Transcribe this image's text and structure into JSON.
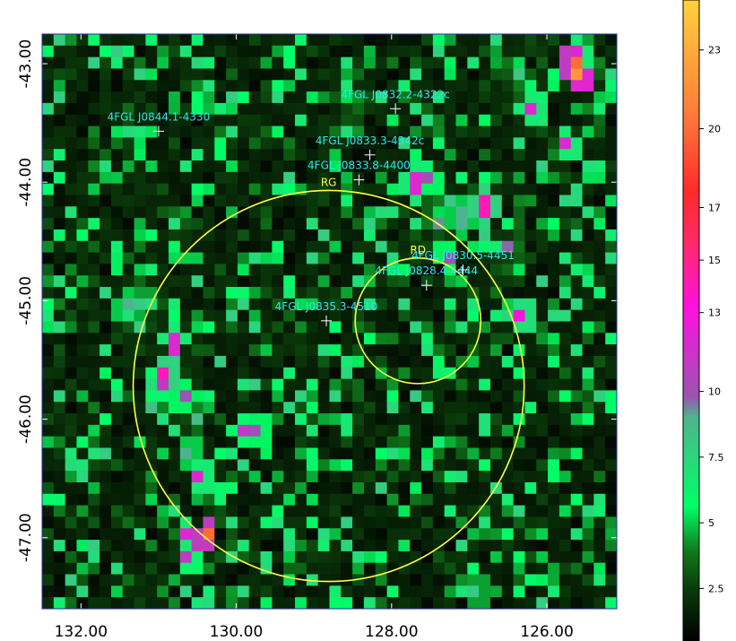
{
  "chart_data": {
    "type": "heatmap",
    "title": "",
    "xlabel": "",
    "ylabel": "",
    "x_axis": {
      "reversed": true,
      "range": [
        132.5,
        125.1
      ],
      "ticks": [
        {
          "value": 132.0,
          "label": "132.00"
        },
        {
          "value": 130.0,
          "label": "130.00"
        },
        {
          "value": 128.0,
          "label": "128.00"
        },
        {
          "value": 126.0,
          "label": "126.00"
        }
      ]
    },
    "y_axis": {
      "range": [
        -47.6,
        -42.75
      ],
      "ticks": [
        {
          "value": -43.0,
          "label": "-43.00"
        },
        {
          "value": -44.0,
          "label": "-44.00"
        },
        {
          "value": -45.0,
          "label": "-45.00"
        },
        {
          "value": -46.0,
          "label": "-46.00"
        },
        {
          "value": -47.0,
          "label": "-47.00"
        }
      ]
    },
    "colorbar": {
      "range": [
        0.5,
        24.9
      ],
      "ticks": [
        {
          "value": 2.5,
          "label": "2.5"
        },
        {
          "value": 5,
          "label": "5"
        },
        {
          "value": 7.5,
          "label": "7.5"
        },
        {
          "value": 10,
          "label": "10"
        },
        {
          "value": 13,
          "label": "13"
        },
        {
          "value": 15,
          "label": "15"
        },
        {
          "value": 17,
          "label": "17"
        },
        {
          "value": 20,
          "label": "20"
        },
        {
          "value": 23,
          "label": "23"
        }
      ],
      "stops": [
        "#000000",
        "#0a3a0a",
        "#0f7a1c",
        "#00ff66",
        "#4fb38f",
        "#9a55b0",
        "#ff10e0",
        "#ff2a6a",
        "#ff2a2a",
        "#ff7a3a",
        "#ffd23a"
      ],
      "stop_positions": [
        0.0,
        0.08,
        0.14,
        0.21,
        0.35,
        0.38,
        0.52,
        0.62,
        0.7,
        0.82,
        1.0
      ]
    },
    "grid": false,
    "hotspots": [
      {
        "ra": 125.6,
        "dec": -43.1,
        "v": 22
      },
      {
        "ra": 125.65,
        "dec": -43.0,
        "v": 20
      },
      {
        "ra": 125.6,
        "dec": -42.9,
        "v": 12
      },
      {
        "ra": 126.2,
        "dec": -43.4,
        "v": 12
      },
      {
        "ra": 125.75,
        "dec": -43.7,
        "v": 12
      },
      {
        "ra": 127.7,
        "dec": -44.0,
        "v": 12
      },
      {
        "ra": 127.5,
        "dec": -44.0,
        "v": 10
      },
      {
        "ra": 126.8,
        "dec": -44.2,
        "v": 14
      },
      {
        "ra": 127.1,
        "dec": -44.3,
        "v": 9
      },
      {
        "ra": 127.3,
        "dec": -44.6,
        "v": 10
      },
      {
        "ra": 126.3,
        "dec": -45.1,
        "v": 13
      },
      {
        "ra": 126.4,
        "dec": -45.1,
        "v": 9
      },
      {
        "ra": 130.9,
        "dec": -45.6,
        "v": 14
      },
      {
        "ra": 131.0,
        "dec": -45.7,
        "v": 11
      },
      {
        "ra": 130.7,
        "dec": -45.8,
        "v": 10
      },
      {
        "ra": 129.7,
        "dec": -46.1,
        "v": 10
      },
      {
        "ra": 129.9,
        "dec": -46.1,
        "v": 11
      },
      {
        "ra": 130.45,
        "dec": -46.5,
        "v": 12
      },
      {
        "ra": 130.6,
        "dec": -46.25,
        "v": 9
      },
      {
        "ra": 131.4,
        "dec": -45.05,
        "v": 9
      },
      {
        "ra": 131.2,
        "dec": -45.0,
        "v": 8
      },
      {
        "ra": 130.8,
        "dec": -45.35,
        "v": 12
      },
      {
        "ra": 130.4,
        "dec": -47.0,
        "v": 20
      },
      {
        "ra": 130.6,
        "dec": -47.0,
        "v": 12
      },
      {
        "ra": 130.6,
        "dec": -47.15,
        "v": 11
      },
      {
        "ra": 126.9,
        "dec": -47.45,
        "v": 8
      }
    ],
    "green_clusters": [
      {
        "ra": 127.5,
        "dec": -44.3,
        "r": 0.45
      },
      {
        "ra": 126.3,
        "dec": -43.2,
        "r": 0.5
      },
      {
        "ra": 130.7,
        "dec": -45.9,
        "r": 0.5
      },
      {
        "ra": 131.2,
        "dec": -45.2,
        "r": 0.4
      },
      {
        "ra": 130.2,
        "dec": -46.6,
        "r": 0.35
      },
      {
        "ra": 126.5,
        "dec": -44.6,
        "r": 0.4
      },
      {
        "ra": 128.5,
        "dec": -43.2,
        "r": 0.45
      },
      {
        "ra": 130.8,
        "dec": -44.3,
        "r": 0.35
      }
    ],
    "sources": [
      {
        "name": "4FGL J0832.2-4322c",
        "ra": 127.95,
        "dec": -43.38
      },
      {
        "name": "4FGL J0844.1-4330",
        "ra": 131.0,
        "dec": -43.57
      },
      {
        "name": "4FGL J0833.3-4342c",
        "ra": 128.28,
        "dec": -43.77
      },
      {
        "name": "4FGL J0833.8-4400",
        "ra": 128.42,
        "dec": -43.98
      },
      {
        "name": "4FGL J0828.4-4444",
        "ra": 127.55,
        "dec": -44.87
      },
      {
        "name": "4FGL J0830.5-4451",
        "ra": 127.08,
        "dec": -44.74
      },
      {
        "name": "4FGL J0835.3-4510",
        "ra": 128.84,
        "dec": -45.17
      }
    ],
    "regions": [
      {
        "name": "RG",
        "ra": 128.81,
        "dec": -45.72,
        "radius_deg": 1.65
      },
      {
        "name": "RD",
        "ra": 127.66,
        "dec": -45.17,
        "radius_deg": 0.53
      }
    ]
  }
}
